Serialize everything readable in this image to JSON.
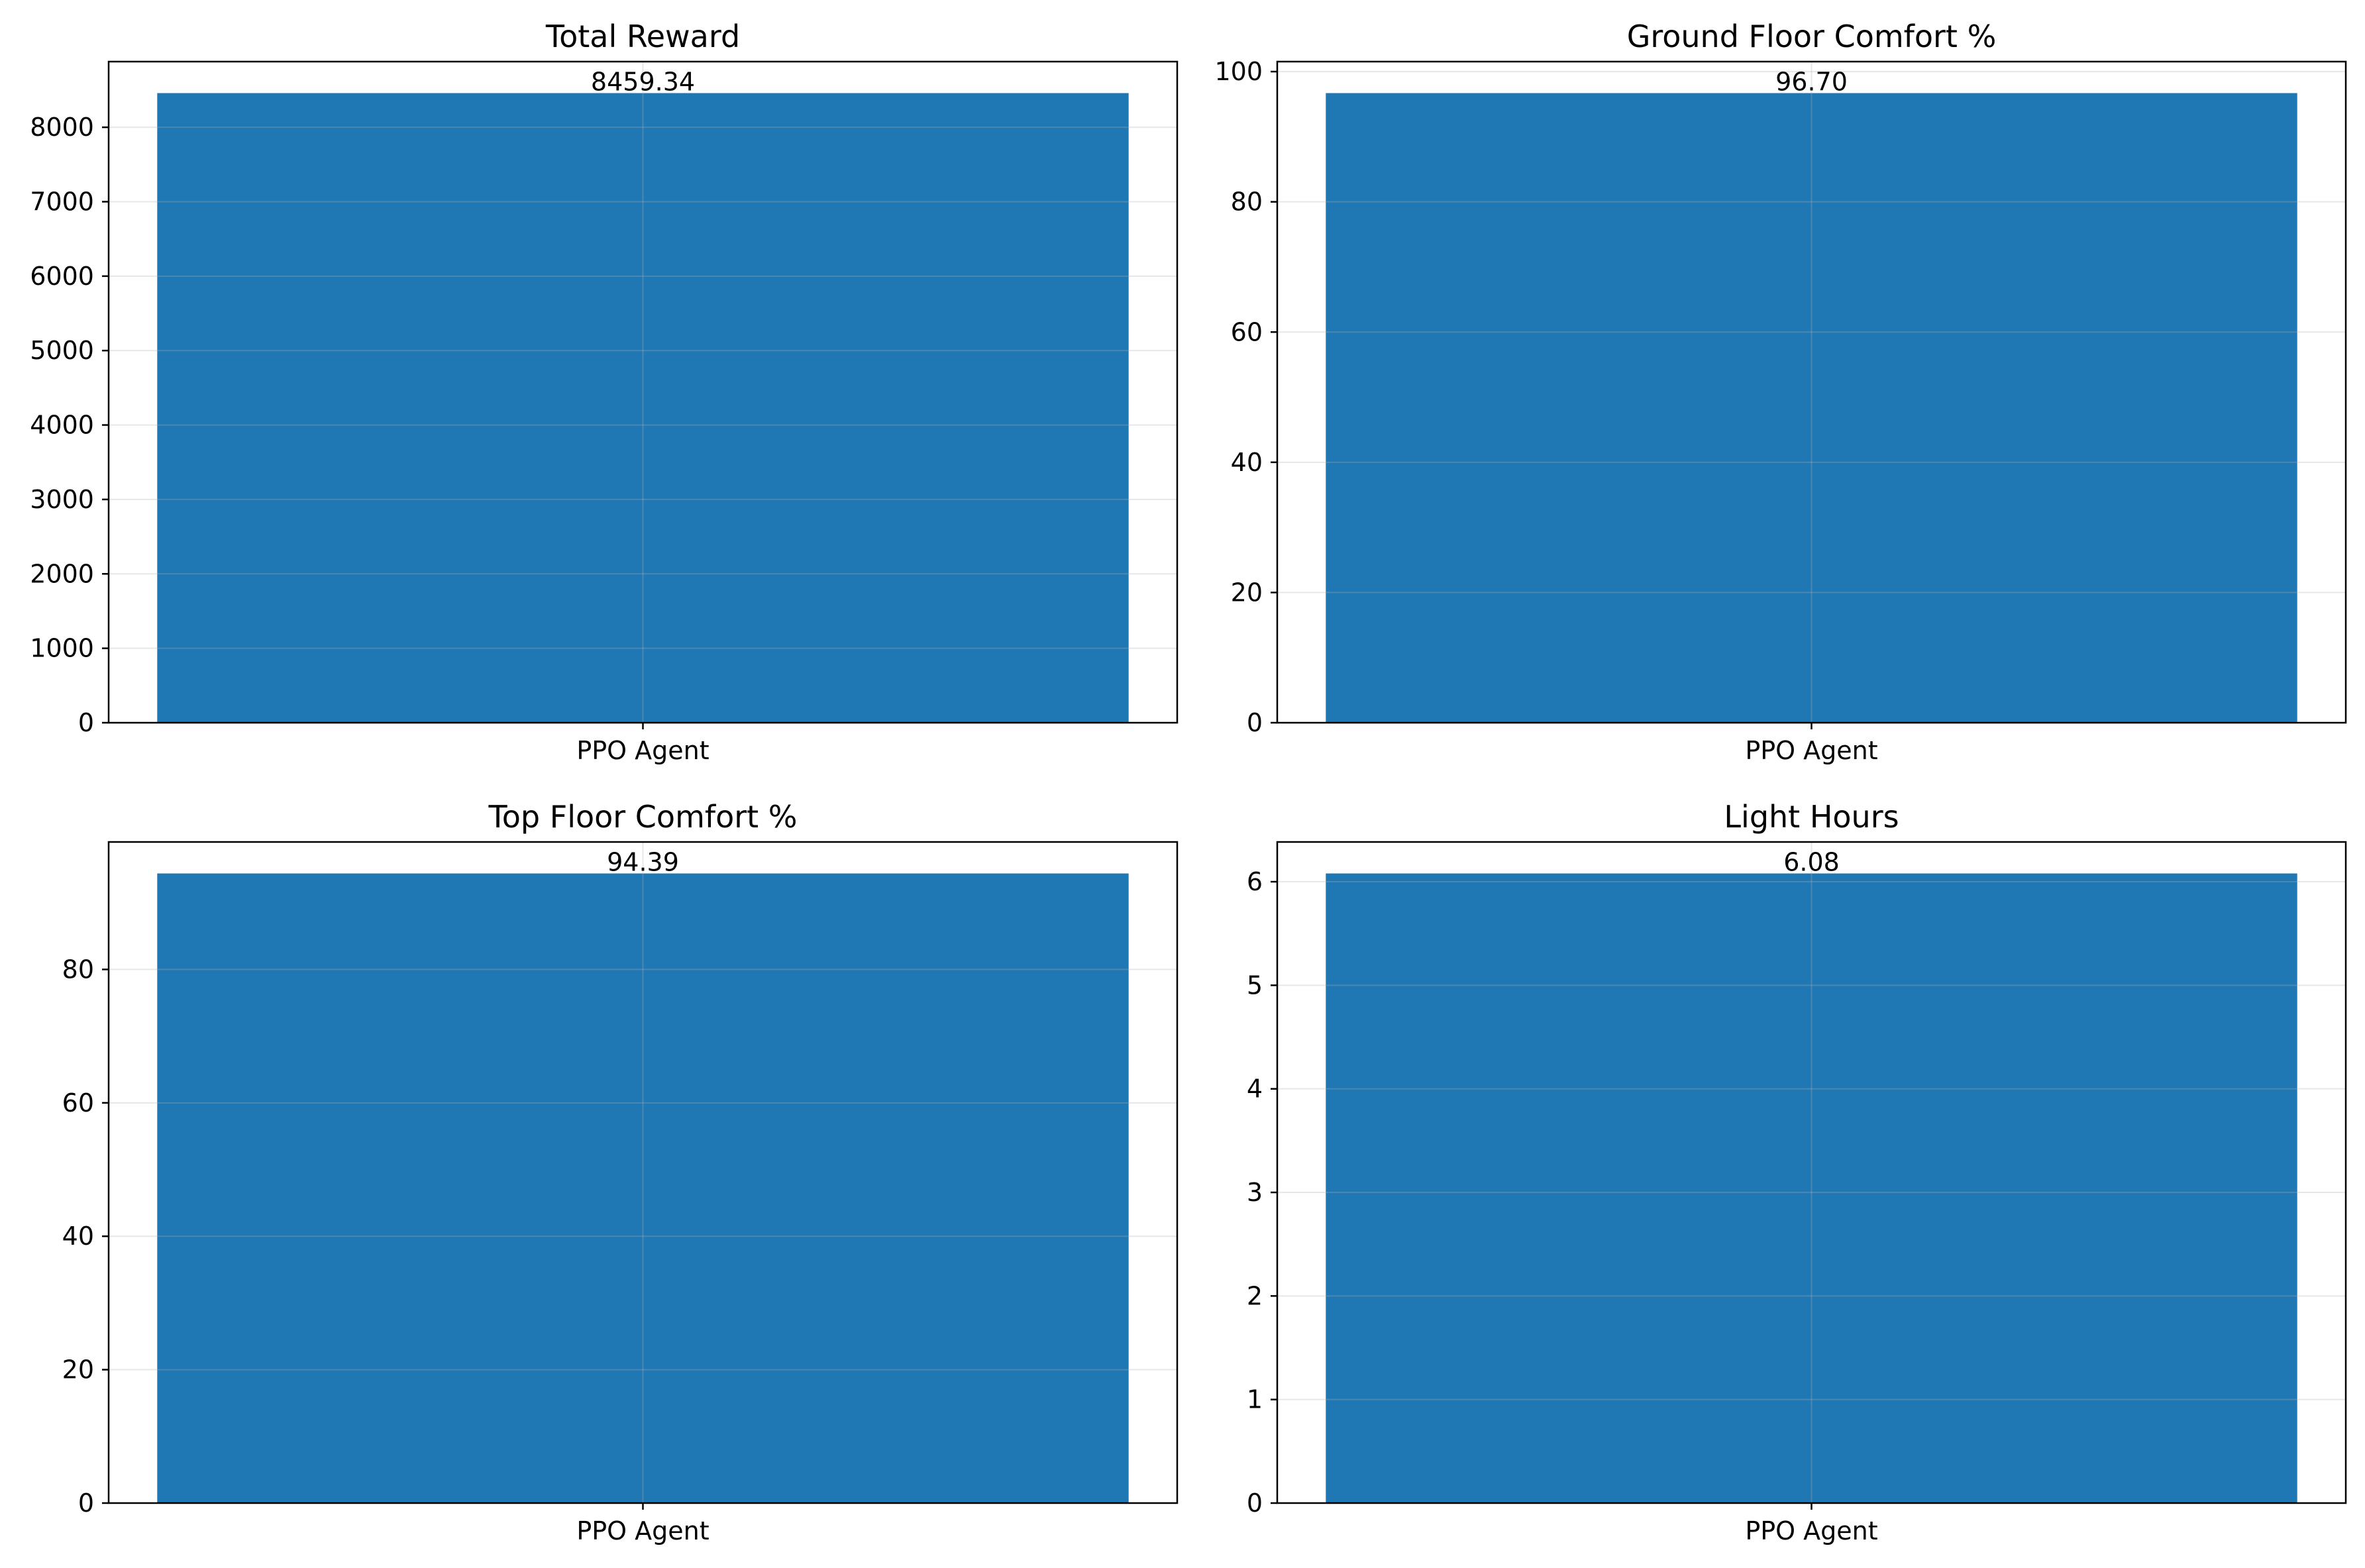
{
  "figure": {
    "background": "#ffffff",
    "bar_color": "#1f77b4",
    "grid_color": "#b0b0b0"
  },
  "chart_data": [
    {
      "type": "bar",
      "title": "Total Reward",
      "categories": [
        "PPO Agent"
      ],
      "values": [
        8459.34
      ],
      "value_labels": [
        "8459.34"
      ],
      "xlabel": "",
      "ylabel": "",
      "ylim": [
        0,
        8882.31
      ],
      "yticks": [
        0,
        1000,
        2000,
        3000,
        4000,
        5000,
        6000,
        7000,
        8000
      ],
      "ytick_labels": [
        "0",
        "1000",
        "2000",
        "3000",
        "4000",
        "5000",
        "6000",
        "7000",
        "8000"
      ],
      "grid": true
    },
    {
      "type": "bar",
      "title": "Ground Floor Comfort %",
      "categories": [
        "PPO Agent"
      ],
      "values": [
        96.7
      ],
      "value_labels": [
        "96.70"
      ],
      "xlabel": "",
      "ylabel": "",
      "ylim": [
        0,
        101.535
      ],
      "yticks": [
        0,
        20,
        40,
        60,
        80,
        100
      ],
      "ytick_labels": [
        "0",
        "20",
        "40",
        "60",
        "80",
        "100"
      ],
      "grid": true
    },
    {
      "type": "bar",
      "title": "Top Floor Comfort %",
      "categories": [
        "PPO Agent"
      ],
      "values": [
        94.39
      ],
      "value_labels": [
        "94.39"
      ],
      "xlabel": "",
      "ylabel": "",
      "ylim": [
        0,
        99.11
      ],
      "yticks": [
        0,
        20,
        40,
        60,
        80
      ],
      "ytick_labels": [
        "0",
        "20",
        "40",
        "60",
        "80"
      ],
      "grid": true
    },
    {
      "type": "bar",
      "title": "Light Hours",
      "categories": [
        "PPO Agent"
      ],
      "values": [
        6.08
      ],
      "value_labels": [
        "6.08"
      ],
      "xlabel": "",
      "ylabel": "",
      "ylim": [
        0,
        6.384
      ],
      "yticks": [
        0,
        1,
        2,
        3,
        4,
        5,
        6
      ],
      "ytick_labels": [
        "0",
        "1",
        "2",
        "3",
        "4",
        "5",
        "6"
      ],
      "grid": true
    }
  ]
}
